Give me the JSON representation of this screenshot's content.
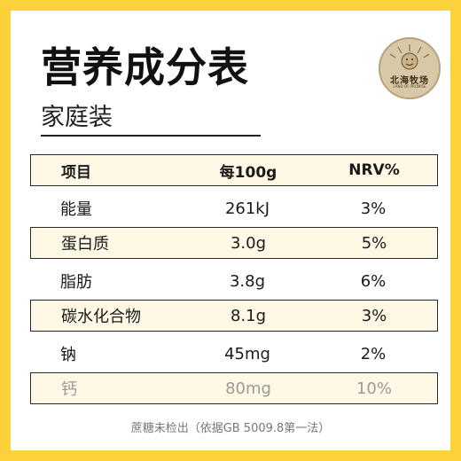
{
  "title": "营养成分表",
  "subtitle": "家庭装",
  "logo": {
    "text": "北海牧场",
    "subtext": "LAND OF PROMISE"
  },
  "table": {
    "headers": [
      "项目",
      "每100g",
      "NRV%"
    ],
    "rows": [
      {
        "item": "能量",
        "per100g": "261kJ",
        "nrv": "3%"
      },
      {
        "item": "蛋白质",
        "per100g": "3.0g",
        "nrv": "5%"
      },
      {
        "item": "脂肪",
        "per100g": "3.8g",
        "nrv": "6%"
      },
      {
        "item": "碳水化合物",
        "per100g": "8.1g",
        "nrv": "3%"
      },
      {
        "item": "钠",
        "per100g": "45mg",
        "nrv": "2%"
      },
      {
        "item": "钙",
        "per100g": "80mg",
        "nrv": "10%"
      }
    ]
  },
  "footnote": "蔗糖未检出（依据GB 5009.8第一法）",
  "colors": {
    "frame": "#fbd23a",
    "row_fill": "#fff8e4",
    "faded_text": "#9a9a9a"
  }
}
